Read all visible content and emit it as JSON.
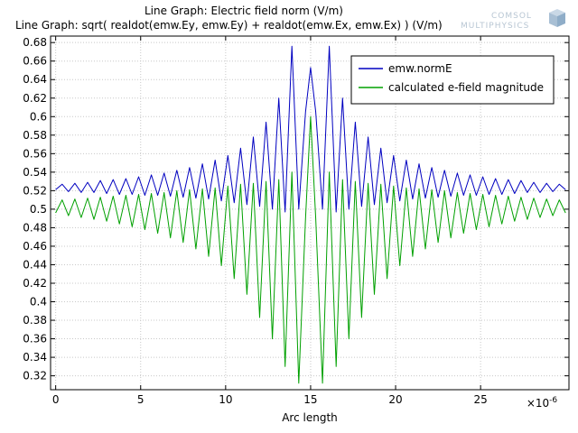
{
  "logo": {
    "line1": "COMSOL",
    "line2": "MULTIPHYSICS"
  },
  "chart_data": {
    "type": "line",
    "title_lines": [
      "Line Graph: Electric field norm (V/m)",
      "Line Graph: sqrt( realdot(emw.Ey, emw.Ey) + realdot(emw.Ex, emw.Ex) ) (V/m)"
    ],
    "xlabel": "Arc length",
    "ylabel": "",
    "x_multiplier_label": "×10",
    "x_multiplier_exp": "-6",
    "xlim": [
      -0.3,
      30.2
    ],
    "ylim": [
      0.305,
      0.687
    ],
    "x_ticks": [
      0,
      5,
      10,
      15,
      20,
      25
    ],
    "x_tick_labels": [
      "0",
      "5",
      "10",
      "15",
      "20",
      "25"
    ],
    "y_ticks": [
      0.32,
      0.34,
      0.36,
      0.38,
      0.4,
      0.42,
      0.44,
      0.46,
      0.48,
      0.5,
      0.52,
      0.54,
      0.56,
      0.58,
      0.6,
      0.62,
      0.64,
      0.66,
      0.68
    ],
    "y_tick_labels": [
      "0.32",
      "0.34",
      "0.36",
      "0.38",
      "0.4",
      "0.42",
      "0.44",
      "0.46",
      "0.48",
      "0.5",
      "0.52",
      "0.54",
      "0.56",
      "0.58",
      "0.6",
      "0.62",
      "0.64",
      "0.66",
      "0.68"
    ],
    "grid": true,
    "legend_position": "top-right",
    "series": [
      {
        "name": "emw.normE",
        "color": "#0000c0",
        "x": [
          0.0,
          0.38,
          0.75,
          1.13,
          1.5,
          1.88,
          2.25,
          2.63,
          3.0,
          3.38,
          3.75,
          4.13,
          4.5,
          4.88,
          5.25,
          5.63,
          6.0,
          6.38,
          6.75,
          7.13,
          7.5,
          7.88,
          8.25,
          8.63,
          9.0,
          9.38,
          9.75,
          10.13,
          10.5,
          10.88,
          11.25,
          11.63,
          12.0,
          12.38,
          12.75,
          13.13,
          13.5,
          13.9,
          14.3,
          14.7,
          15.0,
          15.3,
          15.7,
          16.1,
          16.5,
          16.88,
          17.25,
          17.63,
          18.0,
          18.38,
          18.75,
          19.13,
          19.5,
          19.88,
          20.25,
          20.63,
          21.0,
          21.38,
          21.75,
          22.13,
          22.5,
          22.88,
          23.25,
          23.63,
          24.0,
          24.38,
          24.75,
          25.13,
          25.5,
          25.88,
          26.25,
          26.63,
          27.0,
          27.38,
          27.75,
          28.13,
          28.5,
          28.88,
          29.25,
          29.63,
          30.0
        ],
        "y": [
          0.521,
          0.527,
          0.519,
          0.528,
          0.518,
          0.529,
          0.518,
          0.531,
          0.517,
          0.532,
          0.516,
          0.533,
          0.516,
          0.535,
          0.515,
          0.537,
          0.515,
          0.539,
          0.514,
          0.542,
          0.513,
          0.545,
          0.512,
          0.549,
          0.511,
          0.553,
          0.509,
          0.558,
          0.507,
          0.566,
          0.505,
          0.578,
          0.503,
          0.594,
          0.5,
          0.62,
          0.497,
          0.676,
          0.5,
          0.605,
          0.653,
          0.605,
          0.5,
          0.676,
          0.497,
          0.62,
          0.5,
          0.594,
          0.503,
          0.578,
          0.505,
          0.566,
          0.507,
          0.558,
          0.509,
          0.553,
          0.511,
          0.549,
          0.512,
          0.545,
          0.513,
          0.542,
          0.514,
          0.539,
          0.515,
          0.537,
          0.515,
          0.535,
          0.516,
          0.533,
          0.516,
          0.532,
          0.517,
          0.531,
          0.518,
          0.529,
          0.518,
          0.528,
          0.519,
          0.527,
          0.521
        ]
      },
      {
        "name": "calculated e-field magnitude",
        "color": "#00a000",
        "x": [
          0.0,
          0.38,
          0.75,
          1.13,
          1.5,
          1.88,
          2.25,
          2.63,
          3.0,
          3.38,
          3.75,
          4.13,
          4.5,
          4.88,
          5.25,
          5.63,
          6.0,
          6.38,
          6.75,
          7.13,
          7.5,
          7.88,
          8.25,
          8.63,
          9.0,
          9.38,
          9.75,
          10.13,
          10.5,
          10.88,
          11.25,
          11.63,
          12.0,
          12.38,
          12.75,
          13.13,
          13.5,
          13.9,
          14.3,
          14.7,
          15.0,
          15.3,
          15.7,
          16.1,
          16.5,
          16.88,
          17.25,
          17.63,
          18.0,
          18.38,
          18.75,
          19.13,
          19.5,
          19.88,
          20.25,
          20.63,
          21.0,
          21.38,
          21.75,
          22.13,
          22.5,
          22.88,
          23.25,
          23.63,
          24.0,
          24.38,
          24.75,
          25.13,
          25.5,
          25.88,
          26.25,
          26.63,
          27.0,
          27.38,
          27.75,
          28.13,
          28.5,
          28.88,
          29.25,
          29.63,
          30.0
        ],
        "y": [
          0.496,
          0.51,
          0.493,
          0.511,
          0.491,
          0.512,
          0.489,
          0.513,
          0.487,
          0.514,
          0.484,
          0.515,
          0.481,
          0.516,
          0.478,
          0.517,
          0.474,
          0.518,
          0.469,
          0.52,
          0.464,
          0.521,
          0.457,
          0.522,
          0.449,
          0.523,
          0.439,
          0.525,
          0.425,
          0.527,
          0.408,
          0.528,
          0.383,
          0.53,
          0.36,
          0.532,
          0.33,
          0.54,
          0.312,
          0.49,
          0.6,
          0.49,
          0.312,
          0.54,
          0.33,
          0.532,
          0.36,
          0.53,
          0.383,
          0.528,
          0.408,
          0.527,
          0.425,
          0.525,
          0.439,
          0.523,
          0.449,
          0.522,
          0.457,
          0.521,
          0.464,
          0.52,
          0.469,
          0.518,
          0.474,
          0.517,
          0.478,
          0.516,
          0.481,
          0.515,
          0.484,
          0.514,
          0.487,
          0.513,
          0.489,
          0.512,
          0.491,
          0.511,
          0.493,
          0.51,
          0.496
        ]
      }
    ]
  }
}
